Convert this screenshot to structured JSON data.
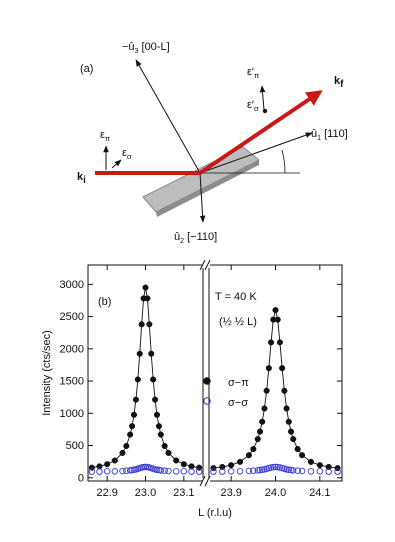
{
  "diagram": {
    "panel_label": "(a)",
    "u3": {
      "text": "−û",
      "sub": "3",
      "suffix": " [00-L]"
    },
    "u1": {
      "text": "û",
      "sub": "1",
      "suffix": " [110]"
    },
    "u2": {
      "text": "û",
      "sub": "2",
      "suffix": " [−110]"
    },
    "ki": {
      "text": "k",
      "sub": "i"
    },
    "kf": {
      "text": "k",
      "sub": "f"
    },
    "eps_pi": {
      "text": "ε",
      "sub": "π"
    },
    "eps_sigma": {
      "text": "ε",
      "sub": "σ"
    },
    "eps_pi_prime": {
      "text": "ε′",
      "sub": "π"
    },
    "eps_sigma_prime": {
      "text": "ε′",
      "sub": "σ"
    }
  },
  "chart_data": {
    "type": "scatter",
    "panel_label": "(b)",
    "annotations": [
      "T = 40 K",
      "(½ ½ L)"
    ],
    "xlabel": "L (r.l.u)",
    "ylabel": "Intensity (cts/sec)",
    "ylim": [
      -50,
      3300
    ],
    "yticks": [
      0,
      500,
      1000,
      1500,
      2000,
      2500,
      3000
    ],
    "panels": [
      {
        "xlim": [
          22.85,
          23.15
        ],
        "xticks": [
          22.9,
          {
            "value": 23,
            "label": "23.0"
          },
          23.1
        ]
      },
      {
        "xlim": [
          23.85,
          24.15
        ],
        "xticks": [
          23.9,
          {
            "value": 24,
            "label": "24.0"
          },
          24.1
        ]
      }
    ],
    "x": [
      22.86,
      22.88,
      22.9,
      22.92,
      22.94,
      22.95,
      22.96,
      22.965,
      22.97,
      22.975,
      22.98,
      22.985,
      22.99,
      22.995,
      23,
      23.005,
      23.01,
      23.015,
      23.02,
      23.025,
      23.03,
      23.035,
      23.04,
      23.05,
      23.06,
      23.08,
      23.1,
      23.12,
      23.14,
      23.86,
      23.88,
      23.9,
      23.92,
      23.94,
      23.95,
      23.96,
      23.965,
      23.97,
      23.975,
      23.98,
      23.985,
      23.99,
      23.995,
      24,
      24.005,
      24.01,
      24.015,
      24.02,
      24.025,
      24.03,
      24.035,
      24.04,
      24.05,
      24.06,
      24.08,
      24.1,
      24.12,
      24.14
    ],
    "series": [
      {
        "name": "σ−π",
        "color": "#111111",
        "filled": true,
        "line": true,
        "values": [
          157,
          177,
          210,
          268,
          385,
          493,
          670,
          801,
          977,
          1212,
          1525,
          1924,
          2380,
          2782,
          2950,
          2782,
          2380,
          1924,
          1525,
          1212,
          977,
          801,
          670,
          493,
          385,
          268,
          210,
          177,
          157,
          150,
          168,
          196,
          247,
          350,
          445,
          600,
          716,
          869,
          1075,
          1350,
          1700,
          2100,
          2453,
          2600,
          2453,
          2100,
          1700,
          1350,
          1075,
          869,
          716,
          600,
          445,
          350,
          247,
          196,
          168,
          150
        ]
      },
      {
        "name": "σ−σ",
        "color": "#3a3ad0",
        "filled": false,
        "line": false,
        "values": [
          95,
          95,
          100,
          100,
          105,
          110,
          115,
          120,
          125,
          130,
          140,
          150,
          160,
          165,
          170,
          165,
          160,
          150,
          140,
          130,
          125,
          120,
          115,
          110,
          105,
          100,
          100,
          95,
          95,
          95,
          95,
          100,
          100,
          105,
          110,
          115,
          120,
          125,
          130,
          140,
          150,
          160,
          165,
          170,
          165,
          160,
          150,
          140,
          130,
          125,
          120,
          115,
          110,
          105,
          100,
          100,
          95,
          95
        ]
      }
    ]
  }
}
